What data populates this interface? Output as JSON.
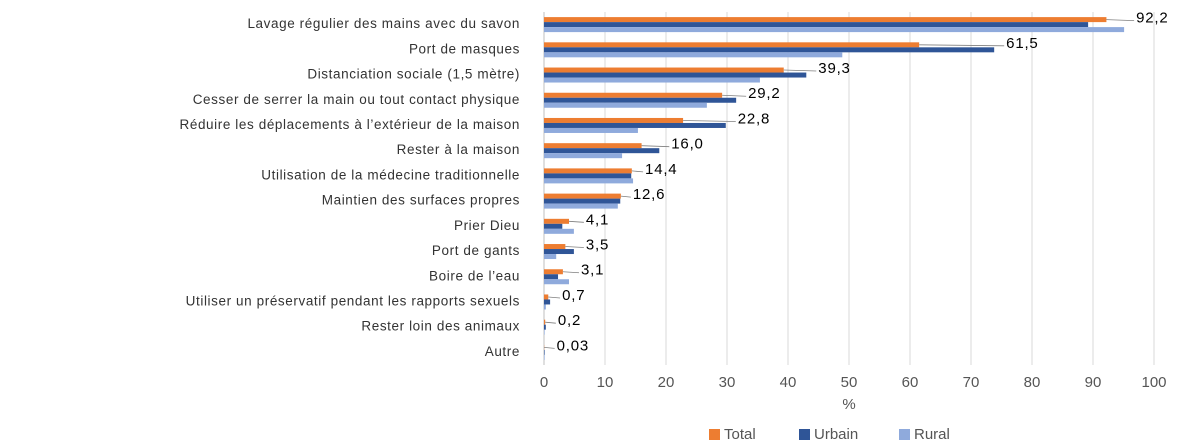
{
  "chart_data": {
    "type": "hbar",
    "xlabel": "%",
    "categories": [
      "Lavage régulier des mains avec du savon",
      "Port de masques",
      "Distanciation sociale (1,5 mètre)",
      "Cesser de serrer la main ou tout contact physique",
      "Réduire les déplacements à l’extérieur de la maison",
      "Rester à la maison",
      "Utilisation de la médecine traditionnelle",
      "Maintien des surfaces propres",
      "Prier Dieu",
      "Port de gants",
      "Boire de l’eau",
      "Utiliser un préservatif pendant les rapports sexuels",
      "Rester loin des animaux",
      "Autre"
    ],
    "series": [
      {
        "name": "Total",
        "color": "#ed7d31",
        "values": [
          92.2,
          61.5,
          39.3,
          29.2,
          22.8,
          16.0,
          14.4,
          12.6,
          4.1,
          3.5,
          3.1,
          0.7,
          0.2,
          0.03
        ],
        "value_labels": [
          "92,2",
          "61,5",
          "39,3",
          "29,2",
          "22,8",
          "16,0",
          "14,4",
          "12,6",
          "4,1",
          "3,5",
          "3,1",
          "0,7",
          "0,2",
          "0,03"
        ]
      },
      {
        "name": "Urbain",
        "color": "#2f5597",
        "values": [
          89.2,
          73.8,
          43.0,
          31.5,
          29.8,
          18.9,
          14.3,
          12.5,
          3.0,
          4.9,
          2.3,
          1.0,
          0.3,
          0.1
        ]
      },
      {
        "name": "Rural",
        "color": "#8faadc",
        "values": [
          95.1,
          48.9,
          35.4,
          26.7,
          15.4,
          12.8,
          14.6,
          12.1,
          4.9,
          2.0,
          4.1,
          0.3,
          0.1,
          0.1
        ]
      }
    ],
    "xlim": [
      0,
      100
    ],
    "xticks": [
      0,
      10,
      20,
      30,
      40,
      50,
      60,
      70,
      80,
      90,
      100
    ],
    "grid": true,
    "legend": "bottom"
  }
}
